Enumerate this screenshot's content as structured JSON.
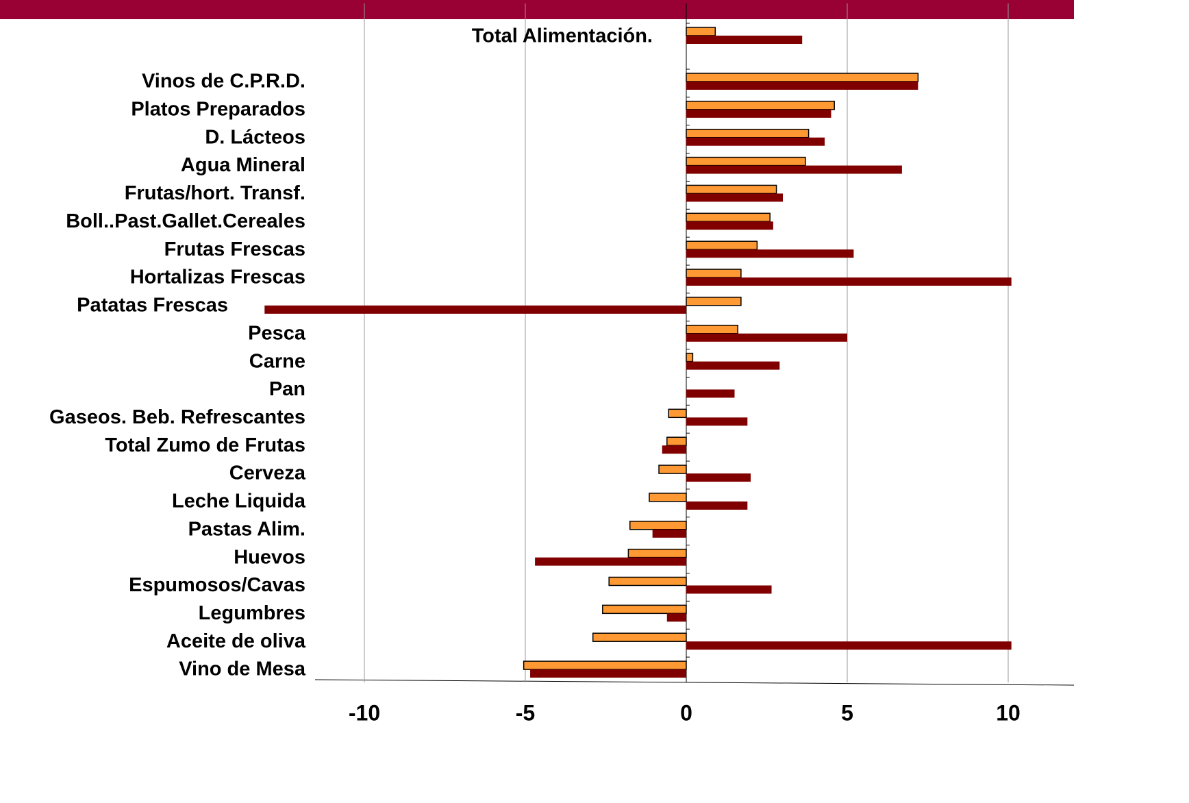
{
  "chart_data": {
    "type": "bar",
    "orientation": "horizontal",
    "categories": [
      "Total Alimentación.",
      "Vinos de C.P.R.D.",
      "Platos Preparados",
      "D. Lácteos",
      "Agua Mineral",
      "Frutas/hort. Transf.",
      "Boll..Past.Gallet.Cereales",
      "Frutas Frescas",
      "Hortalizas Frescas",
      "Patatas Frescas",
      "Pesca",
      "Carne",
      "Pan",
      "Gaseos. Beb. Refrescantes",
      "Total Zumo de Frutas",
      "Cerveza",
      "Leche Liquida",
      "Pastas Alim.",
      "Huevos",
      "Espumosos/Cavas",
      "Legumbres",
      "Aceite de oliva",
      "Vino de Mesa"
    ],
    "series": [
      {
        "color": "#ff9933",
        "values": [
          0.9,
          7.2,
          4.6,
          3.8,
          3.7,
          2.8,
          2.6,
          2.2,
          1.7,
          1.7,
          1.6,
          0.2,
          null,
          -0.55,
          -0.6,
          -0.85,
          -1.15,
          -1.75,
          -1.8,
          -2.4,
          -2.6,
          -2.9,
          -5.05
        ]
      },
      {
        "color": "#800000",
        "values": [
          3.6,
          7.2,
          4.5,
          4.3,
          6.7,
          3.0,
          2.7,
          5.2,
          10.1,
          -13.1,
          5.0,
          2.9,
          1.5,
          1.9,
          -0.75,
          2.0,
          1.9,
          -1.05,
          -4.7,
          2.65,
          -0.6,
          10.1,
          -4.85
        ]
      }
    ],
    "xlim": [
      -13.5,
      12
    ],
    "xticks": [
      -10,
      -5,
      0,
      5,
      10
    ],
    "grid": true
  }
}
